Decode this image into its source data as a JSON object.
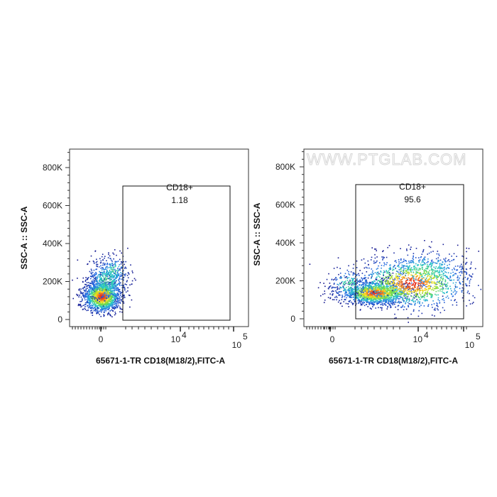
{
  "watermark": "WWW.PTGLAB.COM",
  "chart_data": [
    {
      "type": "scatter",
      "style": "density",
      "title": "",
      "xlabel": "65671-1-TR CD18(M18/2),FITC-A",
      "ylabel": "SSC-A :: SSC-A",
      "xscale": "biexponential",
      "ylim": [
        0,
        900000
      ],
      "y_ticks": [
        {
          "v": 0,
          "label": "0"
        },
        {
          "v": 200000,
          "label": "200K"
        },
        {
          "v": 400000,
          "label": "400K"
        },
        {
          "v": 600000,
          "label": "600K"
        },
        {
          "v": 800000,
          "label": "800K"
        }
      ],
      "x_ticks": [
        {
          "label": "0"
        },
        {
          "label": "10",
          "exp": "4"
        },
        {
          "label": "10",
          "exp": "5"
        }
      ],
      "gate": {
        "name": "CD18+",
        "value": "1.18",
        "y_range": [
          0,
          700000
        ]
      },
      "clusters": [
        {
          "x_center": "~0",
          "y_center": 100000,
          "role": "main population (CD18-)"
        }
      ]
    },
    {
      "type": "scatter",
      "style": "density",
      "title": "",
      "xlabel": "65671-1-TR CD18(M18/2),FITC-A",
      "ylabel": "SSC-A :: SSC-A",
      "xscale": "biexponential",
      "ylim": [
        0,
        900000
      ],
      "y_ticks": [
        {
          "v": 0,
          "label": "0"
        },
        {
          "v": 200000,
          "label": "200K"
        },
        {
          "v": 400000,
          "label": "400K"
        },
        {
          "v": 600000,
          "label": "600K"
        },
        {
          "v": 800000,
          "label": "800K"
        }
      ],
      "x_ticks": [
        {
          "label": "0"
        },
        {
          "label": "10",
          "exp": "4"
        },
        {
          "label": "10",
          "exp": "5"
        }
      ],
      "gate": {
        "name": "CD18+",
        "value": "95.6",
        "y_range": [
          0,
          700000
        ]
      },
      "clusters": [
        {
          "x_center": "~10^3",
          "y_center": 120000,
          "role": "main population (CD18+)"
        }
      ]
    }
  ]
}
